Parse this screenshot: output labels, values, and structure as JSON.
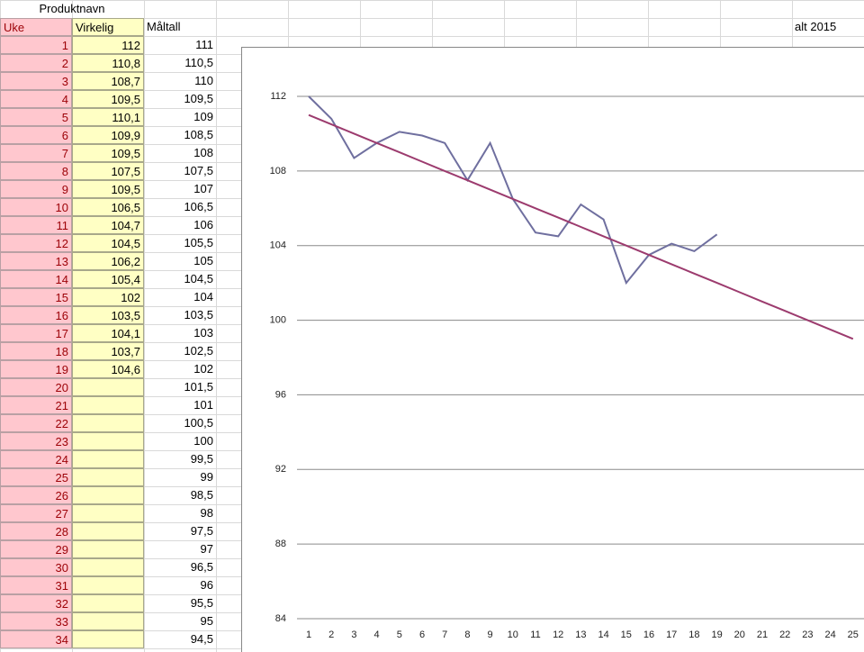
{
  "sheet": {
    "title": "Produktnavn",
    "headers": [
      "Uke",
      "Virkelig",
      "Måltall"
    ],
    "note": "alt 2015",
    "rows": [
      [
        1,
        "112",
        "111"
      ],
      [
        2,
        "110,8",
        "110,5"
      ],
      [
        3,
        "108,7",
        "110"
      ],
      [
        4,
        "109,5",
        "109,5"
      ],
      [
        5,
        "110,1",
        "109"
      ],
      [
        6,
        "109,9",
        "108,5"
      ],
      [
        7,
        "109,5",
        "108"
      ],
      [
        8,
        "107,5",
        "107,5"
      ],
      [
        9,
        "109,5",
        "107"
      ],
      [
        10,
        "106,5",
        "106,5"
      ],
      [
        11,
        "104,7",
        "106"
      ],
      [
        12,
        "104,5",
        "105,5"
      ],
      [
        13,
        "106,2",
        "105"
      ],
      [
        14,
        "105,4",
        "104,5"
      ],
      [
        15,
        "102",
        "104"
      ],
      [
        16,
        "103,5",
        "103,5"
      ],
      [
        17,
        "104,1",
        "103"
      ],
      [
        18,
        "103,7",
        "102,5"
      ],
      [
        19,
        "104,6",
        "102"
      ],
      [
        20,
        null,
        "101,5"
      ],
      [
        21,
        null,
        "101"
      ],
      [
        22,
        null,
        "100,5"
      ],
      [
        23,
        null,
        "100"
      ],
      [
        24,
        null,
        "99,5"
      ],
      [
        25,
        null,
        "99"
      ],
      [
        26,
        null,
        "98,5"
      ],
      [
        27,
        null,
        "98"
      ],
      [
        28,
        null,
        "97,5"
      ],
      [
        29,
        null,
        "97"
      ],
      [
        30,
        null,
        "96,5"
      ],
      [
        31,
        null,
        "96"
      ],
      [
        32,
        null,
        "95,5"
      ],
      [
        33,
        null,
        "95"
      ],
      [
        34,
        null,
        "94,5"
      ]
    ]
  },
  "chart_data": {
    "type": "line",
    "categories": [
      1,
      2,
      3,
      4,
      5,
      6,
      7,
      8,
      9,
      10,
      11,
      12,
      13,
      14,
      15,
      16,
      17,
      18,
      19,
      20,
      21,
      22,
      23,
      24,
      25
    ],
    "series": [
      {
        "color": "#6f6f9f",
        "values": [
          112,
          110.8,
          108.7,
          109.5,
          110.1,
          109.9,
          109.5,
          107.5,
          109.5,
          106.5,
          104.7,
          104.5,
          106.2,
          105.4,
          102,
          103.5,
          104.1,
          103.7,
          104.6,
          null,
          null,
          null,
          null,
          null,
          null
        ]
      },
      {
        "color": "#9c3b6e",
        "values": [
          111,
          110.5,
          110,
          109.5,
          109,
          108.5,
          108,
          107.5,
          107,
          106.5,
          106,
          105.5,
          105,
          104.5,
          104,
          103.5,
          103,
          102.5,
          102,
          101.5,
          101,
          100.5,
          100,
          99.5,
          99
        ]
      }
    ],
    "ylim": [
      84,
      112
    ],
    "yticks": [
      84,
      88,
      92,
      96,
      100,
      104,
      108,
      112
    ],
    "grid": true
  }
}
